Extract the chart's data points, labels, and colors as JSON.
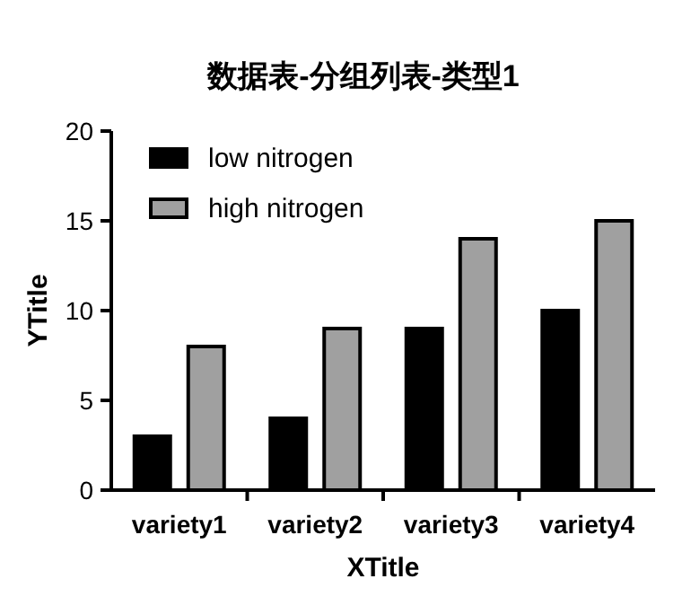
{
  "chart_data": {
    "type": "bar",
    "title": "数据表-分组列表-类型1",
    "xlabel": "XTitle",
    "ylabel": "YTitle",
    "categories": [
      "variety1",
      "variety2",
      "variety3",
      "variety4"
    ],
    "series": [
      {
        "name": "low nitrogen",
        "color": "#000000",
        "values": [
          3,
          4,
          9,
          10
        ]
      },
      {
        "name": "high nitrogen",
        "color": "#a0a0a0",
        "values": [
          8,
          9,
          14,
          15
        ]
      }
    ],
    "ylim": [
      0,
      20
    ],
    "yticks": [
      0,
      5,
      10,
      15,
      20
    ],
    "legend": "top left",
    "grid": false
  }
}
